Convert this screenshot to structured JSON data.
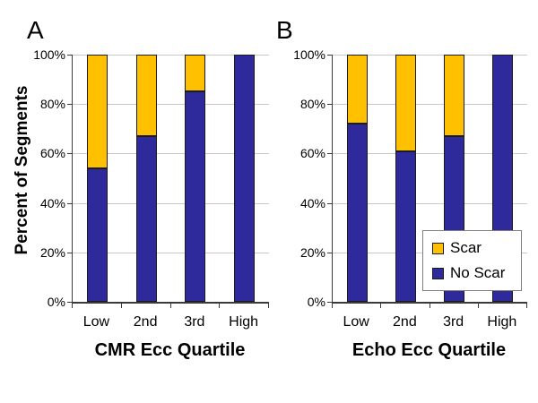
{
  "figure": {
    "ylabel": "Percent of Segments",
    "background": "#ffffff",
    "legend": {
      "position": "inside-right-bottom-of-panel-B",
      "items": [
        {
          "label": "Scar",
          "color": "#FFC000"
        },
        {
          "label": "No Scar",
          "color": "#2F2A9B"
        }
      ]
    },
    "colors": {
      "scar": "#FFC000",
      "no_scar": "#2F2A9B",
      "gridline": "#c9c9c9",
      "axis": "#3a3a3a",
      "bar_border": "#1b1b1b",
      "legend_border": "#7f7f7f"
    }
  },
  "chart_data": [
    {
      "type": "bar",
      "stacked": true,
      "panel_letter": "A",
      "xlabel": "CMR Ecc Quartile",
      "ylabel": "Percent of Segments",
      "categories": [
        "Low",
        "2nd",
        "3rd",
        "High"
      ],
      "series": [
        {
          "name": "No Scar",
          "color": "#2F2A9B",
          "values": [
            54,
            67,
            85,
            100
          ]
        },
        {
          "name": "Scar",
          "color": "#FFC000",
          "values": [
            46,
            33,
            15,
            0
          ]
        }
      ],
      "ylim": [
        0,
        100
      ],
      "yticks": [
        "0%",
        "20%",
        "40%",
        "60%",
        "80%",
        "100%"
      ],
      "grid": true,
      "legend_position": "none"
    },
    {
      "type": "bar",
      "stacked": true,
      "panel_letter": "B",
      "xlabel": "Echo Ecc Quartile",
      "ylabel": "",
      "categories": [
        "Low",
        "2nd",
        "3rd",
        "High"
      ],
      "series": [
        {
          "name": "No Scar",
          "color": "#2F2A9B",
          "values": [
            72,
            61,
            67,
            100
          ]
        },
        {
          "name": "Scar",
          "color": "#FFC000",
          "values": [
            28,
            39,
            33,
            0
          ]
        }
      ],
      "ylim": [
        0,
        100
      ],
      "yticks": [
        "0%",
        "20%",
        "40%",
        "60%",
        "80%",
        "100%"
      ],
      "grid": true,
      "legend_position": "inside-right-bottom"
    }
  ]
}
